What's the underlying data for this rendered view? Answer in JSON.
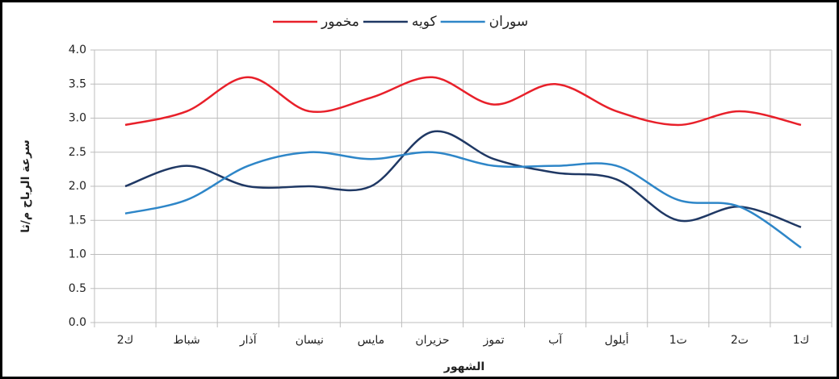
{
  "chart_data": {
    "type": "line",
    "categories": [
      "ك2",
      "شباط",
      "آذار",
      "نيسان",
      "مايس",
      "حزيران",
      "تموز",
      "آب",
      "أيلول",
      "ت1",
      "ت2",
      "ك1"
    ],
    "series": [
      {
        "name": "مخمور",
        "color": "#e8202a",
        "values": [
          2.9,
          3.1,
          3.6,
          3.1,
          3.3,
          3.6,
          3.2,
          3.5,
          3.1,
          2.9,
          3.1,
          2.9
        ]
      },
      {
        "name": "كويه",
        "color": "#1f3864",
        "values": [
          2.0,
          2.3,
          2.0,
          2.0,
          2.0,
          2.8,
          2.4,
          2.2,
          2.1,
          1.5,
          1.7,
          1.4
        ]
      },
      {
        "name": "سوران",
        "color": "#2e86c8",
        "values": [
          1.6,
          1.8,
          2.3,
          2.5,
          2.4,
          2.5,
          2.3,
          2.3,
          2.3,
          1.8,
          1.7,
          1.1
        ]
      }
    ],
    "ylim": [
      0,
      4
    ],
    "yticks": [
      {
        "value": 0,
        "label": "0.0"
      },
      0.5,
      {
        "value": 1,
        "label": "1.0"
      },
      1.5,
      {
        "value": 2,
        "label": "2.0"
      },
      2.5,
      {
        "value": 3,
        "label": "3.0"
      },
      3.5,
      {
        "value": 4,
        "label": "4.0"
      }
    ],
    "xlabel": "الشهور",
    "ylabel": "سرعة الرياح م/ثا",
    "grid": true,
    "legend": "top",
    "smooth": true
  }
}
